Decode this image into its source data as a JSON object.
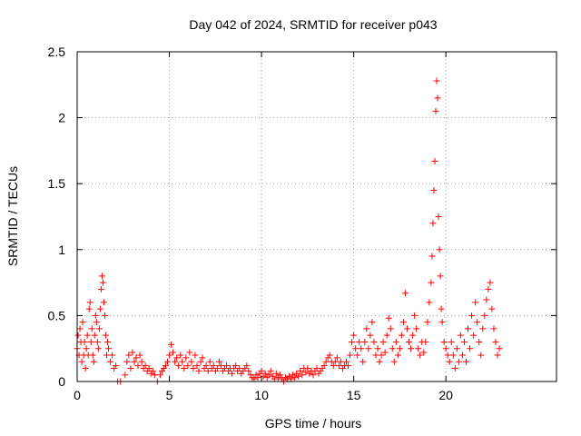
{
  "chart_data": {
    "type": "scatter",
    "title": "Day 042 of 2024, SRMTID for receiver p043",
    "xlabel": "GPS time / hours",
    "ylabel": "SRMTID / TECUs",
    "xlim": [
      0,
      26
    ],
    "ylim": [
      0,
      2.5
    ],
    "xticks": [
      0,
      5,
      10,
      15,
      20
    ],
    "xtick_labels": [
      "0",
      "5",
      "10",
      "15",
      "20"
    ],
    "yticks": [
      0,
      0.5,
      1,
      1.5,
      2,
      2.5
    ],
    "ytick_labels": [
      "0",
      "0.5",
      "1",
      "1.5",
      "2",
      "2.5"
    ],
    "grid": true,
    "marker": "+",
    "marker_color": "#ff0000",
    "series": [
      {
        "name": "SRMTID",
        "points": [
          [
            0.0,
            0.25
          ],
          [
            0.05,
            0.35
          ],
          [
            0.1,
            0.2
          ],
          [
            0.15,
            0.4
          ],
          [
            0.2,
            0.3
          ],
          [
            0.25,
            0.15
          ],
          [
            0.3,
            0.45
          ],
          [
            0.35,
            0.2
          ],
          [
            0.4,
            0.3
          ],
          [
            0.45,
            0.1
          ],
          [
            0.5,
            0.25
          ],
          [
            0.55,
            0.35
          ],
          [
            0.6,
            0.2
          ],
          [
            0.65,
            0.55
          ],
          [
            0.7,
            0.6
          ],
          [
            0.75,
            0.3
          ],
          [
            0.8,
            0.4
          ],
          [
            0.85,
            0.2
          ],
          [
            0.9,
            0.15
          ],
          [
            0.95,
            0.35
          ],
          [
            1.0,
            0.5
          ],
          [
            1.05,
            0.45
          ],
          [
            1.1,
            0.3
          ],
          [
            1.15,
            0.25
          ],
          [
            1.2,
            0.4
          ],
          [
            1.25,
            0.55
          ],
          [
            1.3,
            0.7
          ],
          [
            1.35,
            0.8
          ],
          [
            1.4,
            0.75
          ],
          [
            1.45,
            0.6
          ],
          [
            1.5,
            0.5
          ],
          [
            1.55,
            0.35
          ],
          [
            1.6,
            0.2
          ],
          [
            1.65,
            0.3
          ],
          [
            1.7,
            0.25
          ],
          [
            1.8,
            0.15
          ],
          [
            1.9,
            0.2
          ],
          [
            2.0,
            0.1
          ],
          [
            2.1,
            0.12
          ],
          [
            2.2,
            0.0
          ],
          [
            2.35,
            0.0
          ],
          [
            2.6,
            0.05
          ],
          [
            2.7,
            0.15
          ],
          [
            2.8,
            0.2
          ],
          [
            2.9,
            0.1
          ],
          [
            3.0,
            0.22
          ],
          [
            3.1,
            0.15
          ],
          [
            3.2,
            0.18
          ],
          [
            3.3,
            0.12
          ],
          [
            3.4,
            0.2
          ],
          [
            3.5,
            0.15
          ],
          [
            3.6,
            0.1
          ],
          [
            3.7,
            0.12
          ],
          [
            3.8,
            0.08
          ],
          [
            3.9,
            0.1
          ],
          [
            4.0,
            0.06
          ],
          [
            4.1,
            0.08
          ],
          [
            4.2,
            0.05
          ],
          [
            4.35,
            0.0
          ],
          [
            4.5,
            0.05
          ],
          [
            4.6,
            0.08
          ],
          [
            4.7,
            0.1
          ],
          [
            4.8,
            0.12
          ],
          [
            4.9,
            0.15
          ],
          [
            5.0,
            0.2
          ],
          [
            5.1,
            0.28
          ],
          [
            5.2,
            0.22
          ],
          [
            5.3,
            0.15
          ],
          [
            5.4,
            0.18
          ],
          [
            5.5,
            0.12
          ],
          [
            5.6,
            0.2
          ],
          [
            5.7,
            0.15
          ],
          [
            5.8,
            0.1
          ],
          [
            5.9,
            0.18
          ],
          [
            6.0,
            0.12
          ],
          [
            6.1,
            0.22
          ],
          [
            6.2,
            0.15
          ],
          [
            6.3,
            0.1
          ],
          [
            6.4,
            0.2
          ],
          [
            6.5,
            0.12
          ],
          [
            6.6,
            0.08
          ],
          [
            6.7,
            0.15
          ],
          [
            6.8,
            0.18
          ],
          [
            6.9,
            0.1
          ],
          [
            7.0,
            0.12
          ],
          [
            7.1,
            0.08
          ],
          [
            7.2,
            0.15
          ],
          [
            7.3,
            0.1
          ],
          [
            7.4,
            0.12
          ],
          [
            7.5,
            0.08
          ],
          [
            7.6,
            0.1
          ],
          [
            7.7,
            0.15
          ],
          [
            7.8,
            0.12
          ],
          [
            7.9,
            0.08
          ],
          [
            8.0,
            0.1
          ],
          [
            8.1,
            0.12
          ],
          [
            8.2,
            0.08
          ],
          [
            8.3,
            0.1
          ],
          [
            8.4,
            0.06
          ],
          [
            8.5,
            0.1
          ],
          [
            8.6,
            0.12
          ],
          [
            8.7,
            0.08
          ],
          [
            8.8,
            0.1
          ],
          [
            8.9,
            0.06
          ],
          [
            9.0,
            0.08
          ],
          [
            9.1,
            0.1
          ],
          [
            9.2,
            0.12
          ],
          [
            9.3,
            0.08
          ],
          [
            9.4,
            0.05
          ],
          [
            9.5,
            0.03
          ],
          [
            9.6,
            0.02
          ],
          [
            9.7,
            0.05
          ],
          [
            9.8,
            0.03
          ],
          [
            9.9,
            0.06
          ],
          [
            10.0,
            0.08
          ],
          [
            10.1,
            0.04
          ],
          [
            10.2,
            0.06
          ],
          [
            10.3,
            0.03
          ],
          [
            10.4,
            0.05
          ],
          [
            10.5,
            0.08
          ],
          [
            10.6,
            0.04
          ],
          [
            10.7,
            0.02
          ],
          [
            10.8,
            0.06
          ],
          [
            10.9,
            0.03
          ],
          [
            11.0,
            0.05
          ],
          [
            11.1,
            0.02
          ],
          [
            11.2,
            0.0
          ],
          [
            11.3,
            0.03
          ],
          [
            11.4,
            0.02
          ],
          [
            11.5,
            0.04
          ],
          [
            11.6,
            0.02
          ],
          [
            11.7,
            0.05
          ],
          [
            11.8,
            0.03
          ],
          [
            11.9,
            0.06
          ],
          [
            12.0,
            0.04
          ],
          [
            12.1,
            0.08
          ],
          [
            12.2,
            0.05
          ],
          [
            12.3,
            0.1
          ],
          [
            12.4,
            0.07
          ],
          [
            12.5,
            0.1
          ],
          [
            12.6,
            0.06
          ],
          [
            12.7,
            0.08
          ],
          [
            12.8,
            0.05
          ],
          [
            12.9,
            0.08
          ],
          [
            13.0,
            0.1
          ],
          [
            13.1,
            0.06
          ],
          [
            13.2,
            0.08
          ],
          [
            13.3,
            0.1
          ],
          [
            13.4,
            0.12
          ],
          [
            13.5,
            0.15
          ],
          [
            13.6,
            0.18
          ],
          [
            13.7,
            0.2
          ],
          [
            13.8,
            0.15
          ],
          [
            13.9,
            0.12
          ],
          [
            14.0,
            0.15
          ],
          [
            14.1,
            0.18
          ],
          [
            14.2,
            0.12
          ],
          [
            14.3,
            0.15
          ],
          [
            14.4,
            0.1
          ],
          [
            14.5,
            0.12
          ],
          [
            14.6,
            0.15
          ],
          [
            14.7,
            0.12
          ],
          [
            14.8,
            0.2
          ],
          [
            14.9,
            0.3
          ],
          [
            15.0,
            0.35
          ],
          [
            15.1,
            0.25
          ],
          [
            15.2,
            0.2
          ],
          [
            15.3,
            0.3
          ],
          [
            15.4,
            0.25
          ],
          [
            15.5,
            0.15
          ],
          [
            15.6,
            0.3
          ],
          [
            15.7,
            0.4
          ],
          [
            15.8,
            0.25
          ],
          [
            15.9,
            0.35
          ],
          [
            16.0,
            0.45
          ],
          [
            16.1,
            0.3
          ],
          [
            16.2,
            0.2
          ],
          [
            16.3,
            0.25
          ],
          [
            16.4,
            0.15
          ],
          [
            16.5,
            0.2
          ],
          [
            16.6,
            0.3
          ],
          [
            16.7,
            0.22
          ],
          [
            16.8,
            0.35
          ],
          [
            16.9,
            0.48
          ],
          [
            17.0,
            0.4
          ],
          [
            17.1,
            0.25
          ],
          [
            17.2,
            0.15
          ],
          [
            17.3,
            0.3
          ],
          [
            17.4,
            0.2
          ],
          [
            17.5,
            0.25
          ],
          [
            17.6,
            0.35
          ],
          [
            17.7,
            0.45
          ],
          [
            17.8,
            0.67
          ],
          [
            17.9,
            0.4
          ],
          [
            18.0,
            0.3
          ],
          [
            18.1,
            0.25
          ],
          [
            18.2,
            0.35
          ],
          [
            18.3,
            0.5
          ],
          [
            18.4,
            0.4
          ],
          [
            18.5,
            0.25
          ],
          [
            18.6,
            0.2
          ],
          [
            18.7,
            0.3
          ],
          [
            18.8,
            0.22
          ],
          [
            18.9,
            0.3
          ],
          [
            19.0,
            0.45
          ],
          [
            19.1,
            0.6
          ],
          [
            19.2,
            0.75
          ],
          [
            19.25,
            0.95
          ],
          [
            19.3,
            1.2
          ],
          [
            19.35,
            1.45
          ],
          [
            19.4,
            1.67
          ],
          [
            19.45,
            2.05
          ],
          [
            19.5,
            2.28
          ],
          [
            19.55,
            2.15
          ],
          [
            19.6,
            1.25
          ],
          [
            19.65,
            1.0
          ],
          [
            19.7,
            0.8
          ],
          [
            19.75,
            0.55
          ],
          [
            19.8,
            0.45
          ],
          [
            19.9,
            0.3
          ],
          [
            20.0,
            0.25
          ],
          [
            20.1,
            0.2
          ],
          [
            20.2,
            0.15
          ],
          [
            20.3,
            0.3
          ],
          [
            20.4,
            0.2
          ],
          [
            20.5,
            0.1
          ],
          [
            20.6,
            0.25
          ],
          [
            20.7,
            0.15
          ],
          [
            20.8,
            0.35
          ],
          [
            20.9,
            0.2
          ],
          [
            21.0,
            0.3
          ],
          [
            21.1,
            0.15
          ],
          [
            21.2,
            0.4
          ],
          [
            21.3,
            0.25
          ],
          [
            21.4,
            0.5
          ],
          [
            21.5,
            0.35
          ],
          [
            21.6,
            0.6
          ],
          [
            21.7,
            0.45
          ],
          [
            21.8,
            0.3
          ],
          [
            21.9,
            0.2
          ],
          [
            22.0,
            0.4
          ],
          [
            22.1,
            0.5
          ],
          [
            22.2,
            0.62
          ],
          [
            22.3,
            0.7
          ],
          [
            22.4,
            0.75
          ],
          [
            22.5,
            0.55
          ],
          [
            22.6,
            0.4
          ],
          [
            22.7,
            0.3
          ],
          [
            22.8,
            0.2
          ],
          [
            22.9,
            0.25
          ]
        ]
      }
    ]
  }
}
